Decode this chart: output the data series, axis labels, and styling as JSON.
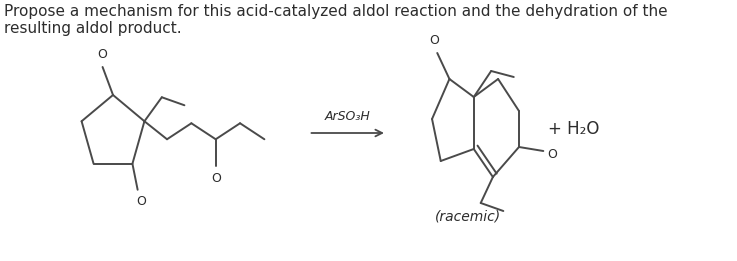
{
  "title_text": "Propose a mechanism for this acid-catalyzed aldol reaction and the dehydration of the\nresulting aldol product.",
  "title_fontsize": 11,
  "title_color": "#2d2d2d",
  "background_color": "#ffffff",
  "arrow_label": "ArSO₃H",
  "arrow_label_fontsize": 9,
  "plus_h2o": "+ H₂O",
  "plus_h2o_fontsize": 12,
  "racemic_label": "(racemic)",
  "racemic_fontsize": 10,
  "line_color": "#4a4a4a",
  "line_width": 1.4,
  "figsize": [
    7.37,
    2.61
  ],
  "dpi": 100
}
